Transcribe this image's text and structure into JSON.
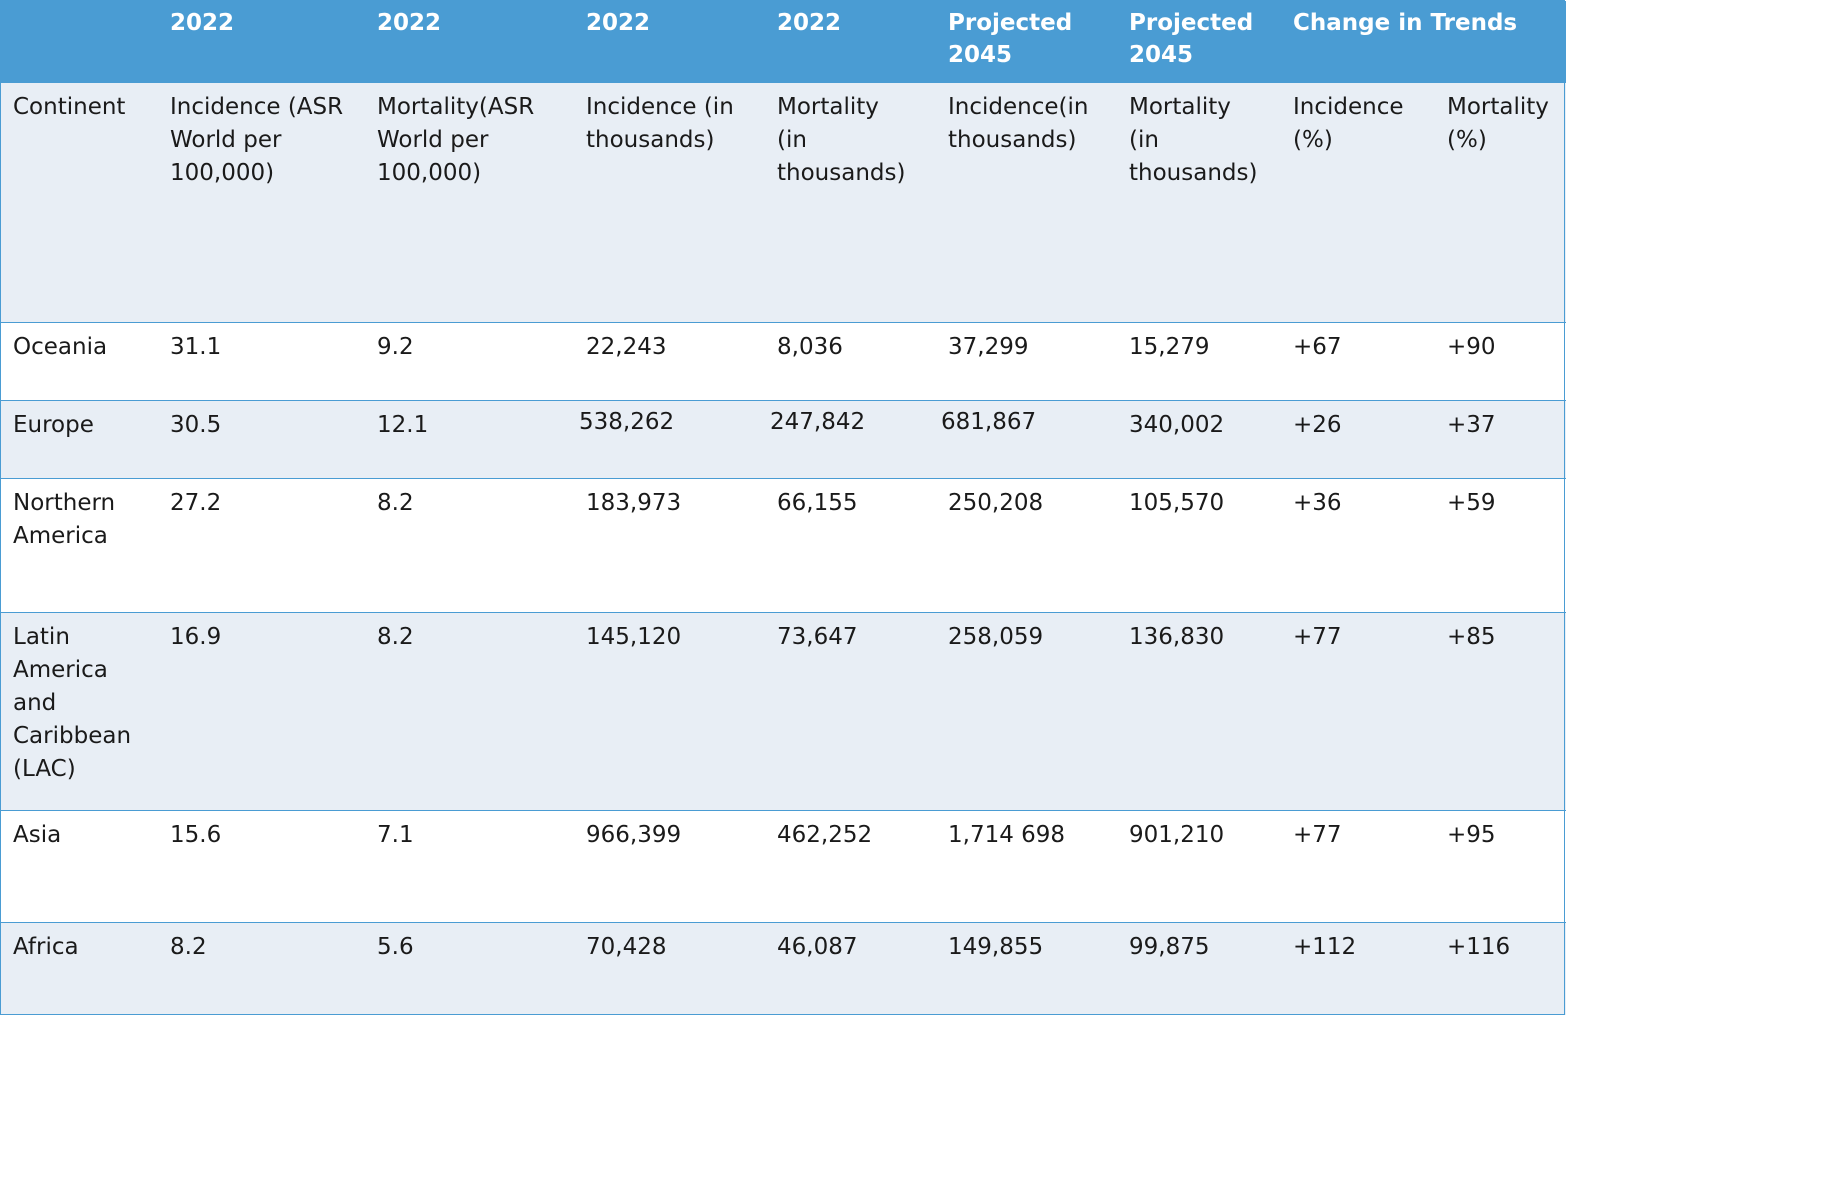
{
  "header_row_1": [
    "",
    "2022",
    "2022",
    "2022",
    "2022",
    "Projected\n2045",
    "Projected\n2045",
    "Change in Trends",
    ""
  ],
  "header_row_2": [
    "Continent",
    "Incidence (ASR\nWorld per\n100,000)",
    "Mortality(ASR\nWorld per\n100,000)",
    "Incidence (in\nthousands)",
    "Mortality\n(in\nthousands)",
    "Incidence(in\nthousands)",
    "Mortality\n(in\nthousands)",
    "Incidence\n(%)",
    "Mortality\n(%)"
  ],
  "rows": [
    [
      "Oceania",
      "31.1",
      "9.2",
      "22,243",
      "8,036",
      "37,299",
      "15,279",
      "+67",
      "+90"
    ],
    [
      "Europe",
      "30.5",
      "12.1",
      "538,262",
      "247,842",
      "681,867",
      "340,002",
      "+26",
      "+37"
    ],
    [
      "Northern\nAmerica",
      "27.2",
      "8.2",
      "183,973",
      "66,155",
      "250,208",
      "105,570",
      "+36",
      "+59"
    ],
    [
      "Latin\nAmerica\nand\nCaribbean\n(LAC)",
      "16.9",
      "8.2",
      "145,120",
      "73,647",
      "258,059",
      "136,830",
      "+77",
      "+85"
    ],
    [
      "Asia",
      "15.6",
      "7.1",
      "966,399",
      "462,252",
      "1,714 698",
      "901,210",
      "+77",
      "+95"
    ],
    [
      "Africa",
      "8.2",
      "5.6",
      "70,428",
      "46,087",
      "149,855",
      "99,875",
      "+112",
      "+116"
    ]
  ],
  "colors": {
    "header_bg": "#4a9cd3",
    "band_bg": "#e8eef5",
    "plain_bg": "#ffffff",
    "text": "#1a1a1a",
    "header_text": "#ffffff"
  }
}
